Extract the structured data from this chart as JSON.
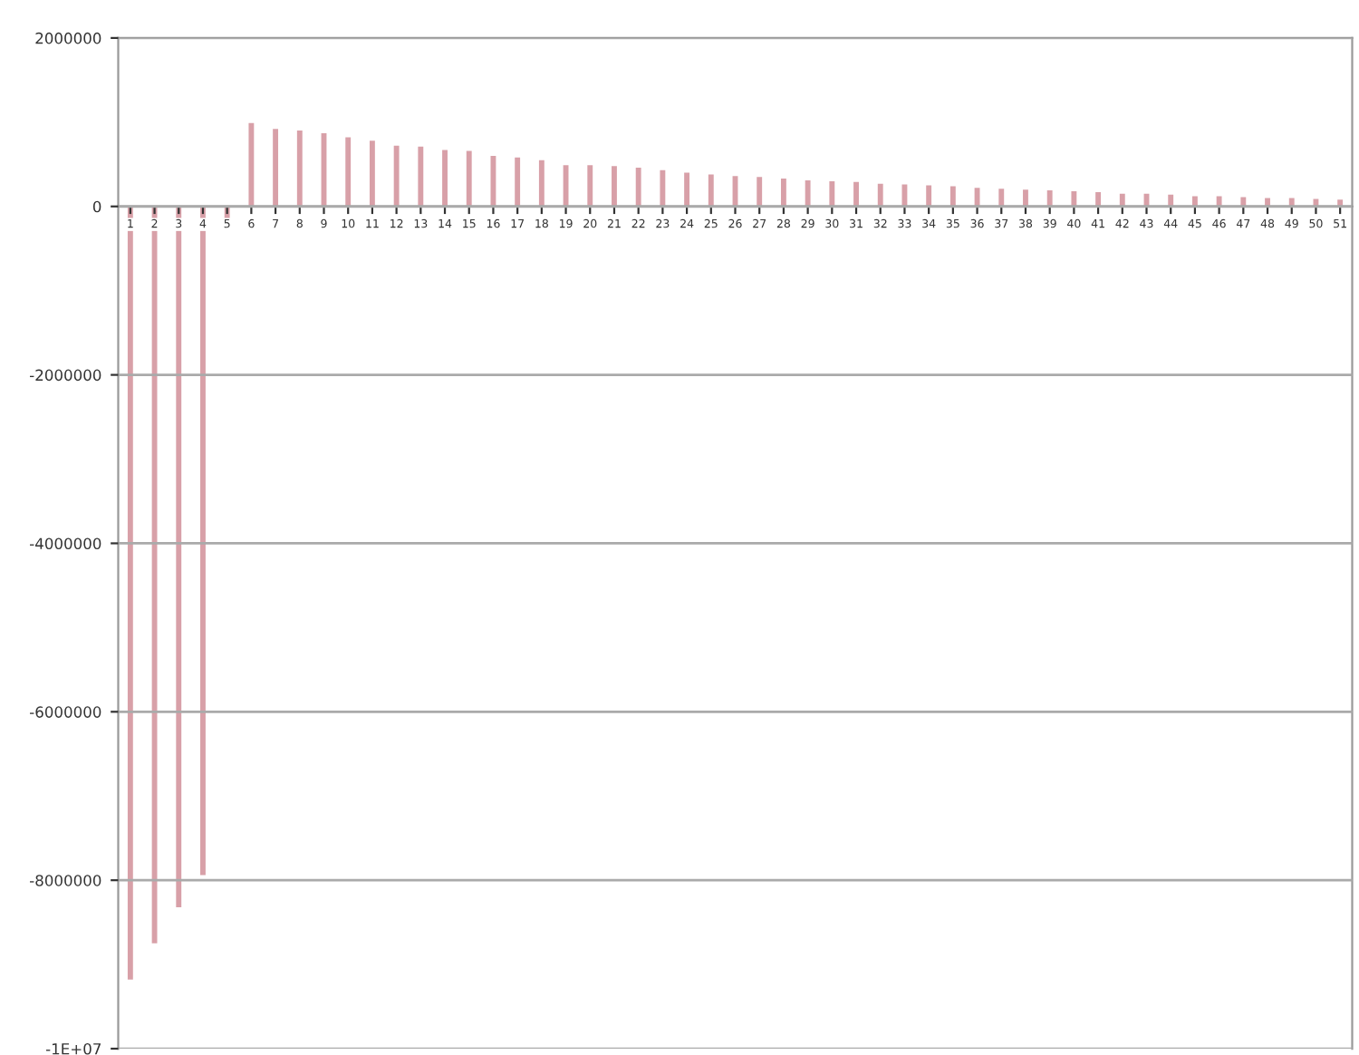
{
  "chart_data": {
    "type": "bar",
    "categories": [
      "1",
      "2",
      "3",
      "4",
      "5",
      "6",
      "7",
      "8",
      "9",
      "10",
      "11",
      "12",
      "13",
      "14",
      "15",
      "16",
      "17",
      "18",
      "19",
      "20",
      "21",
      "22",
      "23",
      "24",
      "25",
      "26",
      "27",
      "28",
      "29",
      "30",
      "31",
      "32",
      "33",
      "34",
      "35",
      "36",
      "37",
      "38",
      "39",
      "40",
      "41",
      "42",
      "43",
      "44",
      "45",
      "46",
      "47",
      "48",
      "49",
      "50",
      "51"
    ],
    "values": [
      -9180000,
      -8750000,
      -8320000,
      -7940000,
      -200000,
      990000,
      920000,
      900000,
      870000,
      820000,
      780000,
      720000,
      710000,
      670000,
      660000,
      600000,
      580000,
      550000,
      490000,
      490000,
      480000,
      460000,
      430000,
      400000,
      380000,
      360000,
      350000,
      330000,
      310000,
      300000,
      290000,
      270000,
      260000,
      250000,
      240000,
      220000,
      210000,
      200000,
      190000,
      180000,
      170000,
      150000,
      150000,
      140000,
      120000,
      120000,
      110000,
      100000,
      100000,
      90000,
      80000
    ],
    "color": "#d8a0a8",
    "ylim": [
      -10000000,
      2000000
    ],
    "yticks": [
      {
        "value": -10000000,
        "label": "-1E+07"
      },
      -8000000,
      -6000000,
      -4000000,
      -2000000,
      0,
      2000000
    ],
    "grid": "y"
  }
}
